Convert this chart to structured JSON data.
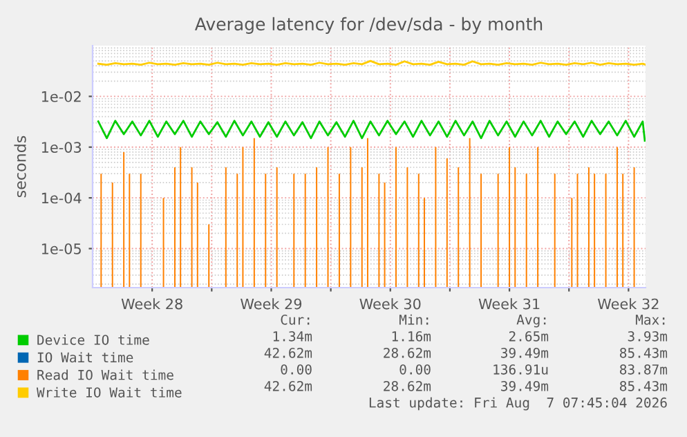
{
  "chart_data": {
    "type": "line",
    "title": "Average latency for /dev/sda - by month",
    "ylabel": "seconds",
    "log": "y",
    "ylim": [
      1.7e-06,
      0.1
    ],
    "yticks": [
      {
        "value": 1e-05,
        "label": "1e-05"
      },
      {
        "value": 0.0001,
        "label": "1e-04"
      },
      {
        "value": 0.001,
        "label": "1e-03"
      },
      {
        "value": 0.01,
        "label": "1e-02"
      }
    ],
    "xlim": [
      "2026-07-06T00:00",
      "2026-08-07T12:00"
    ],
    "xticks": [
      {
        "value": "2026-07-09T12:00",
        "label": "Week 28"
      },
      {
        "value": "2026-07-13",
        "label": null
      },
      {
        "value": "2026-07-16T12:00",
        "label": "Week 29"
      },
      {
        "value": "2026-07-20",
        "label": null
      },
      {
        "value": "2026-07-23T12:00",
        "label": "Week 30"
      },
      {
        "value": "2026-07-27",
        "label": null
      },
      {
        "value": "2026-07-30T12:00",
        "label": "Week 31"
      },
      {
        "value": "2026-08-03",
        "label": null
      },
      {
        "value": "2026-08-06T12:00",
        "label": "Week 32"
      }
    ],
    "grid": true,
    "legend": "bottom left",
    "marker": "none",
    "line_style": "solid",
    "x": [
      "2026-07-06T08:00",
      "2026-07-06T20:00",
      "2026-07-07T08:00",
      "2026-07-07T20:00",
      "2026-07-08T08:00",
      "2026-07-08T20:00",
      "2026-07-09T08:00",
      "2026-07-09T20:00",
      "2026-07-10T08:00",
      "2026-07-10T20:00",
      "2026-07-11T08:00",
      "2026-07-11T20:00",
      "2026-07-12T08:00",
      "2026-07-12T20:00",
      "2026-07-13T08:00",
      "2026-07-13T20:00",
      "2026-07-14T08:00",
      "2026-07-14T20:00",
      "2026-07-15T08:00",
      "2026-07-15T20:00",
      "2026-07-16T08:00",
      "2026-07-16T20:00",
      "2026-07-17T08:00",
      "2026-07-17T20:00",
      "2026-07-18T08:00",
      "2026-07-18T20:00",
      "2026-07-19T08:00",
      "2026-07-19T20:00",
      "2026-07-20T08:00",
      "2026-07-20T20:00",
      "2026-07-21T08:00",
      "2026-07-21T20:00",
      "2026-07-22T08:00",
      "2026-07-22T20:00",
      "2026-07-23T08:00",
      "2026-07-23T20:00",
      "2026-07-24T08:00",
      "2026-07-24T20:00",
      "2026-07-25T08:00",
      "2026-07-25T20:00",
      "2026-07-26T08:00",
      "2026-07-26T20:00",
      "2026-07-27T08:00",
      "2026-07-27T20:00",
      "2026-07-28T08:00",
      "2026-07-28T20:00",
      "2026-07-29T08:00",
      "2026-07-29T20:00",
      "2026-07-30T08:00",
      "2026-07-30T20:00",
      "2026-07-31T08:00",
      "2026-07-31T20:00",
      "2026-08-01T08:00",
      "2026-08-01T20:00",
      "2026-08-02T08:00",
      "2026-08-02T20:00",
      "2026-08-03T08:00",
      "2026-08-03T20:00",
      "2026-08-04T08:00",
      "2026-08-04T20:00",
      "2026-08-05T08:00",
      "2026-08-05T20:00",
      "2026-08-06T08:00",
      "2026-08-06T20:00",
      "2026-08-07T08:00",
      "2026-08-07T11:00"
    ],
    "series": [
      {
        "name": "Device IO time",
        "color": "#00cc00",
        "values": [
          0.0032,
          0.0015,
          0.0033,
          0.0018,
          0.0032,
          0.0017,
          0.0033,
          0.0016,
          0.0032,
          0.0018,
          0.0033,
          0.0016,
          0.0032,
          0.0018,
          0.0031,
          0.0016,
          0.0033,
          0.0017,
          0.0032,
          0.0016,
          0.0031,
          0.0016,
          0.0032,
          0.0017,
          0.0031,
          0.0015,
          0.0032,
          0.0017,
          0.0031,
          0.0016,
          0.0033,
          0.0015,
          0.0032,
          0.0017,
          0.0033,
          0.0018,
          0.0032,
          0.0016,
          0.0033,
          0.0017,
          0.0032,
          0.0016,
          0.0033,
          0.0017,
          0.0032,
          0.0015,
          0.0033,
          0.0017,
          0.0032,
          0.0016,
          0.0032,
          0.0017,
          0.0033,
          0.0016,
          0.0032,
          0.0018,
          0.0032,
          0.0016,
          0.0033,
          0.0018,
          0.0032,
          0.0017,
          0.0033,
          0.0016,
          0.0032,
          0.00134
        ]
      },
      {
        "name": "IO Wait time",
        "color": "#0066b3",
        "values": [
          null,
          null,
          null,
          null,
          null,
          null,
          null,
          null,
          null,
          null,
          null,
          null,
          null,
          null,
          null,
          null,
          null,
          null,
          null,
          null,
          null,
          null,
          null,
          null,
          null,
          null,
          null,
          null,
          null,
          null,
          null,
          null,
          null,
          null,
          null,
          null,
          null,
          null,
          null,
          null,
          null,
          null,
          null,
          null,
          null,
          null,
          null,
          null,
          null,
          null,
          null,
          null,
          null,
          null,
          null,
          null,
          null,
          null,
          null,
          null,
          null,
          null,
          null,
          null,
          null,
          null
        ]
      },
      {
        "name": "Read IO Wait time",
        "color": "#ff8000",
        "type": "bar",
        "x": [
          "2026-07-06T12:00",
          "2026-07-06T20:00",
          "2026-07-07T04:00",
          "2026-07-07T12:00",
          "2026-07-07T20:00",
          "2026-07-08T04:00",
          "2026-07-08T12:00",
          "2026-07-08T20:00",
          "2026-07-09T04:00",
          "2026-07-09T12:00",
          "2026-07-09T20:00",
          "2026-07-10T04:00",
          "2026-07-10T12:00",
          "2026-07-10T20:00",
          "2026-07-11T04:00",
          "2026-07-11T12:00",
          "2026-07-11T20:00",
          "2026-07-12T04:00",
          "2026-07-12T12:00",
          "2026-07-12T20:00",
          "2026-07-13T04:00",
          "2026-07-13T12:00",
          "2026-07-13T20:00",
          "2026-07-14T04:00",
          "2026-07-14T12:00",
          "2026-07-14T20:00",
          "2026-07-15T04:00",
          "2026-07-15T12:00",
          "2026-07-15T20:00",
          "2026-07-16T04:00",
          "2026-07-16T12:00",
          "2026-07-16T20:00",
          "2026-07-17T04:00",
          "2026-07-17T12:00",
          "2026-07-17T20:00",
          "2026-07-18T04:00",
          "2026-07-18T12:00",
          "2026-07-18T20:00",
          "2026-07-19T04:00",
          "2026-07-19T12:00",
          "2026-07-19T20:00",
          "2026-07-20T04:00",
          "2026-07-20T12:00",
          "2026-07-20T20:00",
          "2026-07-21T04:00",
          "2026-07-21T12:00",
          "2026-07-21T20:00",
          "2026-07-22T04:00",
          "2026-07-22T12:00",
          "2026-07-22T20:00",
          "2026-07-23T04:00",
          "2026-07-23T12:00",
          "2026-07-23T20:00",
          "2026-07-24T04:00",
          "2026-07-24T12:00",
          "2026-07-24T20:00",
          "2026-07-25T04:00",
          "2026-07-25T12:00",
          "2026-07-25T20:00",
          "2026-07-26T04:00",
          "2026-07-26T12:00",
          "2026-07-26T20:00",
          "2026-07-27T04:00",
          "2026-07-27T12:00",
          "2026-07-27T20:00",
          "2026-07-28T04:00",
          "2026-07-28T12:00",
          "2026-07-28T20:00",
          "2026-07-29T04:00",
          "2026-07-29T12:00",
          "2026-07-29T20:00",
          "2026-07-30T04:00",
          "2026-07-30T12:00",
          "2026-07-30T20:00",
          "2026-07-31T04:00",
          "2026-07-31T12:00",
          "2026-07-31T20:00",
          "2026-08-01T04:00",
          "2026-08-01T12:00",
          "2026-08-01T20:00",
          "2026-08-02T04:00",
          "2026-08-02T12:00",
          "2026-08-02T20:00",
          "2026-08-03T04:00",
          "2026-08-03T12:00",
          "2026-08-03T20:00",
          "2026-08-04T04:00",
          "2026-08-04T12:00",
          "2026-08-04T20:00",
          "2026-08-05T04:00",
          "2026-08-05T12:00",
          "2026-08-05T20:00",
          "2026-08-06T04:00",
          "2026-08-06T12:00",
          "2026-08-06T20:00"
        ],
        "values": [
          0.0003,
          null,
          0.0002,
          null,
          0.0008,
          0.0003,
          null,
          0.0003,
          null,
          null,
          null,
          0.0001,
          null,
          0.0004,
          0.001,
          null,
          0.0004,
          0.0002,
          null,
          3e-05,
          null,
          null,
          0.0004,
          null,
          0.0003,
          0.001,
          null,
          0.0015,
          null,
          0.0003,
          null,
          0.0004,
          null,
          null,
          0.0003,
          null,
          0.0003,
          null,
          0.0004,
          null,
          0.001,
          null,
          0.0003,
          null,
          0.001,
          null,
          0.0004,
          0.0015,
          null,
          0.0003,
          0.0002,
          null,
          0.001,
          null,
          0.0004,
          null,
          0.0003,
          0.0001,
          null,
          0.001,
          null,
          0.0006,
          null,
          0.0004,
          null,
          0.0015,
          null,
          0.0003,
          null,
          null,
          0.0003,
          null,
          0.001,
          0.0004,
          null,
          0.0003,
          null,
          0.001,
          null,
          null,
          0.0003,
          null,
          null,
          0.0001,
          0.0003,
          null,
          0.0004,
          0.0003,
          null,
          0.0003,
          null,
          0.001,
          0.0003,
          null,
          0.0004
        ]
      },
      {
        "name": "Write IO Wait time",
        "color": "#ffcc00",
        "values": [
          0.044,
          0.042,
          0.045,
          0.043,
          0.044,
          0.042,
          0.046,
          0.043,
          0.044,
          0.042,
          0.045,
          0.043,
          0.044,
          0.042,
          0.046,
          0.043,
          0.044,
          0.042,
          0.045,
          0.043,
          0.044,
          0.042,
          0.045,
          0.043,
          0.044,
          0.042,
          0.046,
          0.043,
          0.044,
          0.042,
          0.045,
          0.043,
          0.05,
          0.043,
          0.044,
          0.042,
          0.049,
          0.043,
          0.044,
          0.042,
          0.048,
          0.043,
          0.044,
          0.042,
          0.049,
          0.043,
          0.044,
          0.042,
          0.045,
          0.043,
          0.044,
          0.042,
          0.046,
          0.043,
          0.044,
          0.042,
          0.045,
          0.043,
          0.046,
          0.042,
          0.045,
          0.043,
          0.044,
          0.042,
          0.044,
          0.04262
        ]
      }
    ],
    "annotations": [
      "Cur:",
      "Min:",
      "Avg:",
      "Max:",
      "1.34m",
      "1.16m",
      "2.65m",
      "3.93m",
      "42.62m",
      "28.62m",
      "39.49m",
      "85.43m",
      "0.00",
      "0.00",
      "136.91u",
      "83.87m",
      "42.62m",
      "28.62m",
      "39.49m",
      "85.43m",
      "Last update: Fri Aug  7 07:45:04 2026"
    ]
  }
}
